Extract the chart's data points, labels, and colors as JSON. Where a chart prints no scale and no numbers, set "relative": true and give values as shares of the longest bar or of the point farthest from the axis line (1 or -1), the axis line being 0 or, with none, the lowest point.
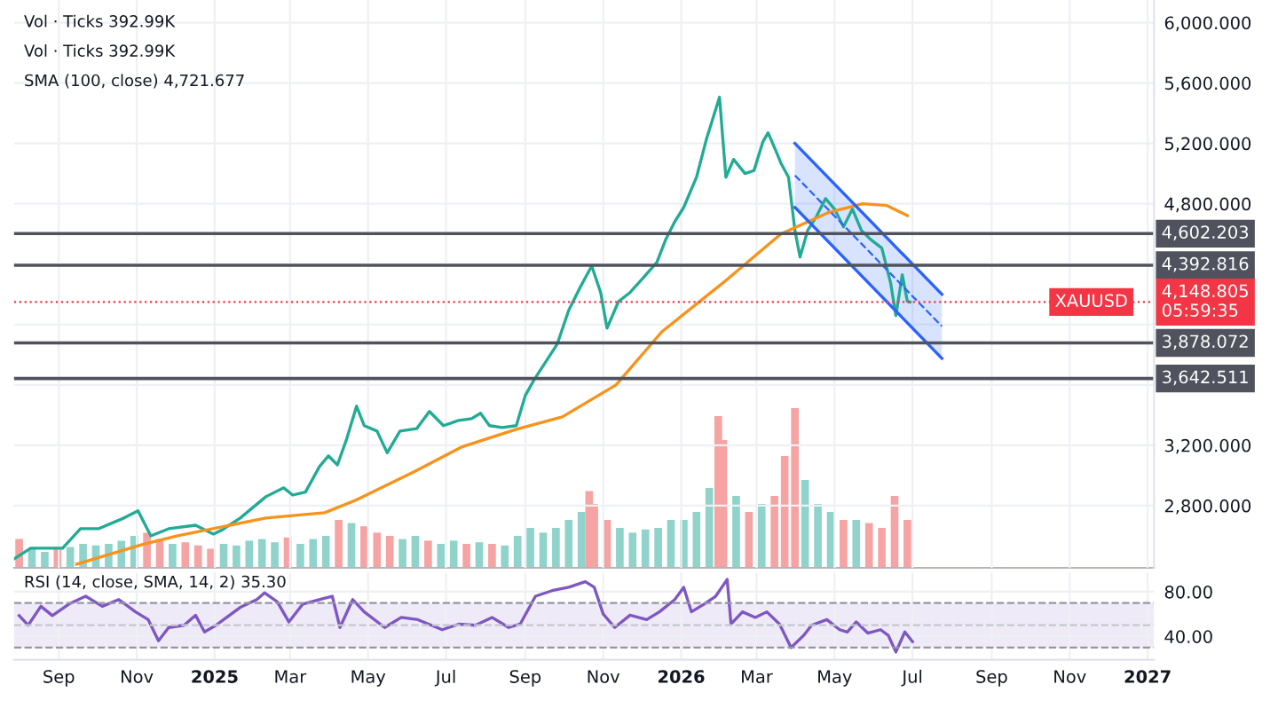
{
  "chart_data": [
    {
      "type": "line",
      "xlim": [
        "2024-07-28",
        "2027-01-06"
      ],
      "ylim": [
        2388,
        6150
      ],
      "grid": true,
      "tick_labels": "y",
      "xticks": [
        {
          "value": "2024-09-01",
          "label": null
        },
        {
          "value": "2024-11-01",
          "label": null
        },
        {
          "value": "2025-01-01",
          "label": null
        },
        {
          "value": "2025-03-01",
          "label": null
        },
        {
          "value": "2025-05-01",
          "label": null
        },
        {
          "value": "2025-07-01",
          "label": null
        },
        {
          "value": "2025-09-01",
          "label": null
        },
        {
          "value": "2025-11-01",
          "label": null
        },
        {
          "value": "2026-01-01",
          "label": null
        },
        {
          "value": "2026-03-01",
          "label": null
        },
        {
          "value": "2026-05-01",
          "label": null
        },
        {
          "value": "2026-07-01",
          "label": null
        },
        {
          "value": "2026-09-01",
          "label": null
        },
        {
          "value": "2026-11-01",
          "label": null
        },
        {
          "value": "2027-01-01",
          "label": null
        }
      ],
      "yticks": [
        {
          "value": 2800,
          "label": "2,800.000"
        },
        {
          "value": 3200,
          "label": "3,200.000"
        },
        {
          "value": 3600,
          "label": null
        },
        {
          "value": 4000,
          "label": null
        },
        {
          "value": 4400,
          "label": null
        },
        {
          "value": 4800,
          "label": "4,800.000"
        },
        {
          "value": 5200,
          "label": "5,200.000"
        },
        {
          "value": 5600,
          "label": "5,600.000"
        },
        {
          "value": 6000,
          "label": "6,000.000"
        }
      ],
      "series": [
        {
          "color": "#22ab94",
          "x": [
            "2024-07-28",
            "2024-08-10",
            "2024-09-04",
            "2024-09-18",
            "2024-10-02",
            "2024-10-22",
            "2024-11-02",
            "2024-11-12",
            "2024-11-26",
            "2024-12-17",
            "2024-12-31",
            "2025-01-07",
            "2025-01-21",
            "2025-02-10",
            "2025-02-24",
            "2025-03-03",
            "2025-03-13",
            "2025-03-24",
            "2025-03-31",
            "2025-04-07",
            "2025-04-14",
            "2025-04-22",
            "2025-04-28",
            "2025-05-08",
            "2025-05-16",
            "2025-05-26",
            "2025-06-08",
            "2025-06-18",
            "2025-06-29",
            "2025-07-11",
            "2025-07-21",
            "2025-07-28",
            "2025-08-04",
            "2025-08-14",
            "2025-08-25",
            "2025-09-01",
            "2025-09-08",
            "2025-09-17",
            "2025-09-26",
            "2025-10-05",
            "2025-10-14",
            "2025-10-23",
            "2025-10-30",
            "2025-11-04",
            "2025-11-13",
            "2025-11-22",
            "2025-12-02",
            "2025-12-13",
            "2025-12-20",
            "2025-12-27",
            "2026-01-03",
            "2026-01-13",
            "2026-01-21",
            "2026-01-31",
            "2026-02-05",
            "2026-02-11",
            "2026-02-20",
            "2026-02-27",
            "2026-03-06",
            "2026-03-10",
            "2026-03-16",
            "2026-03-20",
            "2026-03-26",
            "2026-03-31",
            "2026-04-04",
            "2026-04-10",
            "2026-04-17",
            "2026-04-24",
            "2026-05-01",
            "2026-05-08",
            "2026-05-15",
            "2026-05-22",
            "2026-05-29",
            "2026-06-07",
            "2026-06-14",
            "2026-06-18",
            "2026-06-23",
            "2026-06-27",
            "2026-06-29"
          ],
          "values": [
            2447,
            2518,
            2518,
            2647,
            2647,
            2718,
            2765,
            2600,
            2647,
            2670,
            2612,
            2640,
            2718,
            2859,
            2918,
            2870,
            2890,
            3059,
            3130,
            3070,
            3235,
            3459,
            3330,
            3294,
            3150,
            3294,
            3310,
            3424,
            3330,
            3365,
            3376,
            3412,
            3330,
            3318,
            3330,
            3529,
            3635,
            3753,
            3870,
            4094,
            4247,
            4388,
            4212,
            3976,
            4153,
            4212,
            4306,
            4412,
            4565,
            4682,
            4776,
            4976,
            5235,
            5506,
            4976,
            5094,
            5000,
            5020,
            5212,
            5270,
            5153,
            5070,
            4976,
            4624,
            4447,
            4624,
            4718,
            4835,
            4765,
            4647,
            4765,
            4624,
            4565,
            4506,
            4271,
            4059,
            4330,
            4153,
            4148.805
          ]
        },
        {
          "color": "#f7931a",
          "x": [
            "2024-09-15",
            "2024-11-05",
            "2024-12-03",
            "2025-02-10",
            "2025-03-28",
            "2025-04-21",
            "2025-06-06",
            "2025-07-13",
            "2025-08-25",
            "2025-09-30",
            "2025-11-11",
            "2025-12-17",
            "2026-02-02",
            "2026-03-20",
            "2026-04-26",
            "2026-05-23",
            "2026-06-11",
            "2026-06-27"
          ],
          "values": [
            2412,
            2541,
            2600,
            2718,
            2753,
            2835,
            3024,
            3188,
            3306,
            3388,
            3600,
            3953,
            4271,
            4600,
            4741,
            4800,
            4788,
            4722
          ]
        },
        {
          "color": "#2962ff",
          "line_style": "dashed",
          "x": [
            "2026-03-31",
            "2026-07-24"
          ],
          "values": [
            4988,
            3988
          ],
          "lower": [
            4776,
            3776
          ],
          "upper": [
            5200,
            4200
          ]
        },
        {
          "color": "#2962ff",
          "x": [
            "2026-03-31",
            "2026-07-24"
          ],
          "values": [
            5200,
            4200
          ]
        },
        {
          "color": "#2962ff",
          "x": [
            "2026-03-31",
            "2026-07-24"
          ],
          "values": [
            4776,
            3776
          ]
        }
      ],
      "ref_lines": [
        {
          "axis": "y",
          "value": 4602.203,
          "label": "4,602.203",
          "color": "#50535e",
          "line_style": "solid"
        },
        {
          "axis": "y",
          "value": 4392.816,
          "label": "4,392.816",
          "color": "#50535e",
          "line_style": "solid"
        },
        {
          "axis": "y",
          "value": 3878.072,
          "label": "3,878.072",
          "color": "#50535e",
          "line_style": "solid"
        },
        {
          "axis": "y",
          "value": 3642.511,
          "label": "3,642.511",
          "color": "#50535e",
          "line_style": "solid"
        },
        {
          "axis": "y",
          "value": 4148.805,
          "label": "4,148.805\n05:59:35",
          "color": "#f23645",
          "line_style": "dotted"
        }
      ],
      "annotations": [
        "Vol · Ticks 392.99K",
        "Vol · Ticks 392.99K",
        "SMA (100, close) 4,721.677",
        {
          "text": "XAUUSD",
          "x": "2026-11-18",
          "y": 4148.805
        }
      ]
    },
    {
      "type": "bar",
      "relative": true,
      "xlim": [
        "2024-07-28",
        "2027-01-06"
      ],
      "tick_labels": false,
      "x": [
        "2024-08-01",
        "2024-08-11",
        "2024-08-21",
        "2024-08-31",
        "2024-09-10",
        "2024-09-20",
        "2024-09-30",
        "2024-10-10",
        "2024-10-20",
        "2024-10-30",
        "2024-11-09",
        "2024-11-19",
        "2024-11-29",
        "2024-12-09",
        "2024-12-19",
        "2024-12-29",
        "2025-01-08",
        "2025-01-18",
        "2025-01-28",
        "2025-02-07",
        "2025-02-17",
        "2025-02-27",
        "2025-03-09",
        "2025-03-19",
        "2025-03-29",
        "2025-04-08",
        "2025-04-18",
        "2025-04-28",
        "2025-05-08",
        "2025-05-18",
        "2025-05-28",
        "2025-06-07",
        "2025-06-17",
        "2025-06-27",
        "2025-07-07",
        "2025-07-17",
        "2025-07-27",
        "2025-08-06",
        "2025-08-16",
        "2025-08-26",
        "2025-09-05",
        "2025-09-15",
        "2025-09-25",
        "2025-10-05",
        "2025-10-15",
        "2025-10-21",
        "2025-10-25",
        "2025-11-04",
        "2025-11-14",
        "2025-11-24",
        "2025-12-04",
        "2025-12-14",
        "2025-12-24",
        "2026-01-03",
        "2026-01-13",
        "2026-01-23",
        "2026-01-30",
        "2026-02-03",
        "2026-02-13",
        "2026-02-23",
        "2026-03-05",
        "2026-03-15",
        "2026-03-23",
        "2026-03-31",
        "2026-04-08",
        "2026-04-18",
        "2026-04-28",
        "2026-05-08",
        "2026-05-18",
        "2026-05-28",
        "2026-06-07",
        "2026-06-17",
        "2026-06-27"
      ],
      "values": [
        0.18,
        0.12,
        0.1,
        0.12,
        0.13,
        0.15,
        0.14,
        0.15,
        0.17,
        0.2,
        0.22,
        0.18,
        0.15,
        0.16,
        0.14,
        0.12,
        0.15,
        0.14,
        0.17,
        0.18,
        0.16,
        0.19,
        0.15,
        0.18,
        0.2,
        0.3,
        0.28,
        0.26,
        0.22,
        0.2,
        0.18,
        0.2,
        0.17,
        0.15,
        0.17,
        0.15,
        0.16,
        0.15,
        0.14,
        0.2,
        0.25,
        0.22,
        0.25,
        0.3,
        0.35,
        0.48,
        0.4,
        0.3,
        0.25,
        0.22,
        0.24,
        0.25,
        0.3,
        0.3,
        0.35,
        0.5,
        0.95,
        0.8,
        0.45,
        0.35,
        0.4,
        0.45,
        0.7,
        1.0,
        0.55,
        0.4,
        0.35,
        0.3,
        0.3,
        0.28,
        0.25,
        0.45,
        0.3
      ],
      "colors": [
        "#f5a3a3",
        "#8fd3cb",
        "#8fd3cb",
        "#f5a3a3",
        "#8fd3cb",
        "#8fd3cb",
        "#8fd3cb",
        "#8fd3cb",
        "#8fd3cb",
        "#8fd3cb",
        "#f5a3a3",
        "#f5a3a3",
        "#8fd3cb",
        "#f5a3a3",
        "#f5a3a3",
        "#f5a3a3",
        "#8fd3cb",
        "#8fd3cb",
        "#8fd3cb",
        "#8fd3cb",
        "#8fd3cb",
        "#f5a3a3",
        "#8fd3cb",
        "#8fd3cb",
        "#8fd3cb",
        "#f5a3a3",
        "#8fd3cb",
        "#f5a3a3",
        "#f5a3a3",
        "#f5a3a3",
        "#8fd3cb",
        "#8fd3cb",
        "#f5a3a3",
        "#8fd3cb",
        "#8fd3cb",
        "#f5a3a3",
        "#8fd3cb",
        "#f5a3a3",
        "#8fd3cb",
        "#8fd3cb",
        "#8fd3cb",
        "#8fd3cb",
        "#8fd3cb",
        "#8fd3cb",
        "#8fd3cb",
        "#f5a3a3",
        "#f5a3a3",
        "#f5a3a3",
        "#8fd3cb",
        "#8fd3cb",
        "#8fd3cb",
        "#8fd3cb",
        "#8fd3cb",
        "#8fd3cb",
        "#8fd3cb",
        "#8fd3cb",
        "#f5a3a3",
        "#f5a3a3",
        "#8fd3cb",
        "#f5a3a3",
        "#8fd3cb",
        "#f5a3a3",
        "#f5a3a3",
        "#f5a3a3",
        "#8fd3cb",
        "#8fd3cb",
        "#8fd3cb",
        "#f5a3a3",
        "#8fd3cb",
        "#f5a3a3",
        "#f5a3a3",
        "#f5a3a3",
        "#f5a3a3"
      ]
    },
    {
      "type": "line",
      "xlim": [
        "2024-07-28",
        "2027-01-06"
      ],
      "ylim": [
        19,
        97
      ],
      "grid": true,
      "xticks": [
        {
          "value": "2024-09-01",
          "label": "Sep"
        },
        {
          "value": "2024-11-01",
          "label": "Nov"
        },
        {
          "value": "2025-01-01",
          "label": "2025"
        },
        {
          "value": "2025-03-01",
          "label": "Mar"
        },
        {
          "value": "2025-05-01",
          "label": "May"
        },
        {
          "value": "2025-07-01",
          "label": "Jul"
        },
        {
          "value": "2025-09-01",
          "label": "Sep"
        },
        {
          "value": "2025-11-01",
          "label": "Nov"
        },
        {
          "value": "2026-01-01",
          "label": "2026"
        },
        {
          "value": "2026-03-01",
          "label": "Mar"
        },
        {
          "value": "2026-05-01",
          "label": "May"
        },
        {
          "value": "2026-07-01",
          "label": "Jul"
        },
        {
          "value": "2026-09-01",
          "label": "Sep"
        },
        {
          "value": "2026-11-01",
          "label": "Nov"
        },
        {
          "value": "2027-01-01",
          "label": "2027"
        }
      ],
      "yticks": [
        {
          "value": 40,
          "label": "40.00"
        },
        {
          "value": 80,
          "label": "80.00"
        }
      ],
      "series": [
        {
          "color": "#7e57c2",
          "x": [
            "2024-08-01",
            "2024-08-08",
            "2024-08-18",
            "2024-08-27",
            "2024-09-09",
            "2024-09-22",
            "2024-10-05",
            "2024-10-18",
            "2024-10-31",
            "2024-11-10",
            "2024-11-18",
            "2024-11-26",
            "2024-12-08",
            "2024-12-17",
            "2024-12-24",
            "2025-01-02",
            "2025-01-21",
            "2025-02-03",
            "2025-02-09",
            "2025-02-19",
            "2025-02-28",
            "2025-03-11",
            "2025-03-27",
            "2025-04-03",
            "2025-04-09",
            "2025-04-19",
            "2025-04-28",
            "2025-05-14",
            "2025-05-27",
            "2025-06-09",
            "2025-06-28",
            "2025-07-11",
            "2025-07-24",
            "2025-08-06",
            "2025-08-19",
            "2025-08-28",
            "2025-09-09",
            "2025-09-22",
            "2025-10-05",
            "2025-10-18",
            "2025-10-25",
            "2025-11-01",
            "2025-11-10",
            "2025-11-22",
            "2025-12-05",
            "2025-12-15",
            "2025-12-27",
            "2026-01-03",
            "2026-01-09",
            "2026-01-19",
            "2026-01-28",
            "2026-02-06",
            "2026-02-09",
            "2026-02-18",
            "2026-02-28",
            "2026-03-09",
            "2026-03-19",
            "2026-03-28",
            "2026-04-07",
            "2026-04-13",
            "2026-04-25",
            "2026-05-05",
            "2026-05-11",
            "2026-05-18",
            "2026-05-27",
            "2026-06-06",
            "2026-06-12",
            "2026-06-18",
            "2026-06-25",
            "2026-07-01"
          ],
          "values": [
            58.6,
            50,
            67,
            58.6,
            69,
            76,
            67,
            73,
            62,
            55,
            36,
            48,
            50,
            59,
            44,
            50,
            66,
            73,
            79,
            71,
            53,
            69,
            74,
            76,
            48,
            73,
            62,
            48,
            57,
            55,
            46,
            51,
            50,
            57,
            48,
            51,
            76,
            81,
            84,
            89,
            84,
            60,
            48,
            59,
            55,
            62,
            73,
            84,
            62,
            69,
            76,
            91,
            51,
            62,
            57,
            62,
            51,
            30,
            41,
            50,
            55,
            46,
            44,
            53,
            43,
            46,
            41,
            26,
            44,
            35.3
          ]
        }
      ],
      "bands": [
        {
          "axis": "y",
          "from": 30,
          "to": 70,
          "color": "#efeaf8"
        }
      ],
      "ref_lines": [
        {
          "axis": "y",
          "value": 70,
          "color": "#9598a1",
          "line_style": "dashed"
        },
        {
          "axis": "y",
          "value": 50,
          "color": "#c5c7ce",
          "line_style": "dashed"
        },
        {
          "axis": "y",
          "value": 30,
          "color": "#9598a1",
          "line_style": "dashed"
        }
      ],
      "annotations": [
        "RSI (14, close, SMA, 14, 2) 35.30"
      ]
    }
  ]
}
